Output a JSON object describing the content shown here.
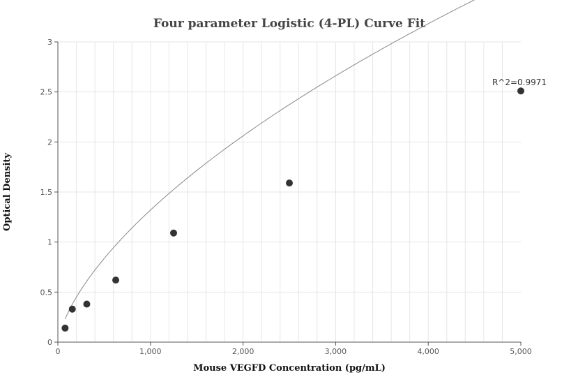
{
  "chart_data": {
    "type": "scatter",
    "title": "Four parameter Logistic (4-PL) Curve Fit",
    "xlabel": "Mouse VEGFD Concentration (pg/mL)",
    "ylabel": "Optical Density",
    "xlim": [
      0,
      5000
    ],
    "ylim": [
      0,
      3
    ],
    "x_ticks": [
      0,
      1000,
      2000,
      3000,
      4000,
      5000
    ],
    "x_tick_labels": [
      "0",
      "1,000",
      "2,000",
      "3,000",
      "4,000",
      "5,000"
    ],
    "y_ticks": [
      0,
      0.5,
      1,
      1.5,
      2,
      2.5,
      3
    ],
    "y_tick_labels": [
      "0",
      "0.5",
      "1",
      "1.5",
      "2",
      "2.5",
      "3"
    ],
    "grid": true,
    "points": [
      {
        "x": 78,
        "y": 0.14
      },
      {
        "x": 156,
        "y": 0.33
      },
      {
        "x": 312,
        "y": 0.38
      },
      {
        "x": 625,
        "y": 0.62
      },
      {
        "x": 1250,
        "y": 1.09
      },
      {
        "x": 2500,
        "y": 1.59
      },
      {
        "x": 5000,
        "y": 2.51
      }
    ],
    "fit_curve": {
      "model": "4PL",
      "a": -0.0297,
      "b": 0.655,
      "c": 223000,
      "d": 47.9
    },
    "annotation": {
      "text": "R^2=0.9971",
      "x": 5000,
      "y": 2.51
    },
    "colors": {
      "point": "#333333",
      "curve": "#888888",
      "grid": "#e6e6e6",
      "axis": "#555555"
    }
  }
}
